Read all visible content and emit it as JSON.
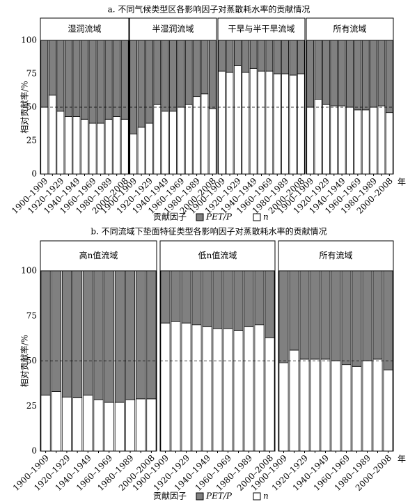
{
  "chart_data": [
    {
      "type": "stacked-bar-panels",
      "title": "a. 不同气候类型区各影响因子对蒸散耗水率的贡献情况",
      "y_label": "相对贡献率/%",
      "x_label": "贡献因子",
      "x_unit": "年",
      "ylim": [
        0,
        100
      ],
      "yticks": [
        0,
        25,
        50,
        75,
        100
      ],
      "reference_line": 50,
      "categories": [
        "1900–1909",
        null,
        "1920–1929",
        null,
        "1940–1949",
        null,
        "1960–1969",
        null,
        "1980–1989",
        null,
        "2000–2008"
      ],
      "series": [
        {
          "name": "n",
          "color": "#ffffff"
        },
        {
          "name": "PET/P",
          "color": "#808080"
        }
      ],
      "panels": [
        {
          "title": "湿润流域",
          "values": [
            [
              50,
              59,
              47,
              43,
              43,
              41,
              38,
              38,
              41,
              43,
              41
            ],
            [
              50,
              41,
              53,
              57,
              57,
              59,
              62,
              62,
              59,
              57,
              59
            ]
          ]
        },
        {
          "title": "半湿润流域",
          "values": [
            [
              30,
              35,
              38,
              52,
              47,
              47,
              50,
              52,
              58,
              60,
              49
            ],
            [
              70,
              65,
              62,
              48,
              53,
              53,
              50,
              48,
              42,
              40,
              51
            ]
          ]
        },
        {
          "title": "干旱与半干旱流域",
          "values": [
            [
              77,
              76,
              81,
              76,
              79,
              77,
              77,
              75,
              75,
              74,
              75
            ],
            [
              23,
              24,
              19,
              24,
              21,
              23,
              23,
              25,
              25,
              26,
              25
            ]
          ]
        },
        {
          "title": "所有流域",
          "values": [
            [
              50,
              56,
              52,
              51,
              51,
              50,
              48,
              48,
              50,
              51,
              46
            ],
            [
              50,
              44,
              48,
              49,
              49,
              50,
              52,
              52,
              50,
              49,
              54
            ]
          ]
        }
      ]
    },
    {
      "type": "stacked-bar-panels",
      "title": "b. 不同流域下垫面特征类型各影响因子对蒸散耗水率的贡献情况",
      "y_label": "相对贡献率/%",
      "x_label": "贡献因子",
      "x_unit": "年",
      "ylim": [
        0,
        100
      ],
      "yticks": [
        0,
        25,
        50,
        75,
        100
      ],
      "reference_line": 50,
      "categories": [
        "1900–1909",
        null,
        "1920–1929",
        null,
        "1940–1949",
        null,
        "1960–1969",
        null,
        "1980–1989",
        null,
        "2000–2008"
      ],
      "series": [
        {
          "name": "n",
          "color": "#ffffff"
        },
        {
          "name": "PET/P",
          "color": "#808080"
        }
      ],
      "panels": [
        {
          "title": "高n值流域",
          "values": [
            [
              31,
              33,
              30,
              29.5,
              31,
              28.5,
              27,
              27,
              28.5,
              29,
              29
            ],
            [
              69,
              67,
              70,
              70.5,
              69,
              71.5,
              73,
              73,
              71.5,
              71,
              71
            ]
          ]
        },
        {
          "title": "低n值流域",
          "values": [
            [
              71,
              72,
              71,
              70,
              69,
              68,
              68,
              67,
              69,
              70,
              63
            ],
            [
              29,
              28,
              29,
              30,
              31,
              32,
              32,
              33,
              31,
              30,
              37
            ]
          ]
        },
        {
          "title": "所有流域",
          "values": [
            [
              49,
              56,
              51,
              51,
              51,
              50,
              48,
              47,
              50,
              51,
              45
            ],
            [
              51,
              44,
              49,
              49,
              49,
              50,
              52,
              53,
              50,
              49,
              55
            ]
          ]
        }
      ]
    }
  ]
}
